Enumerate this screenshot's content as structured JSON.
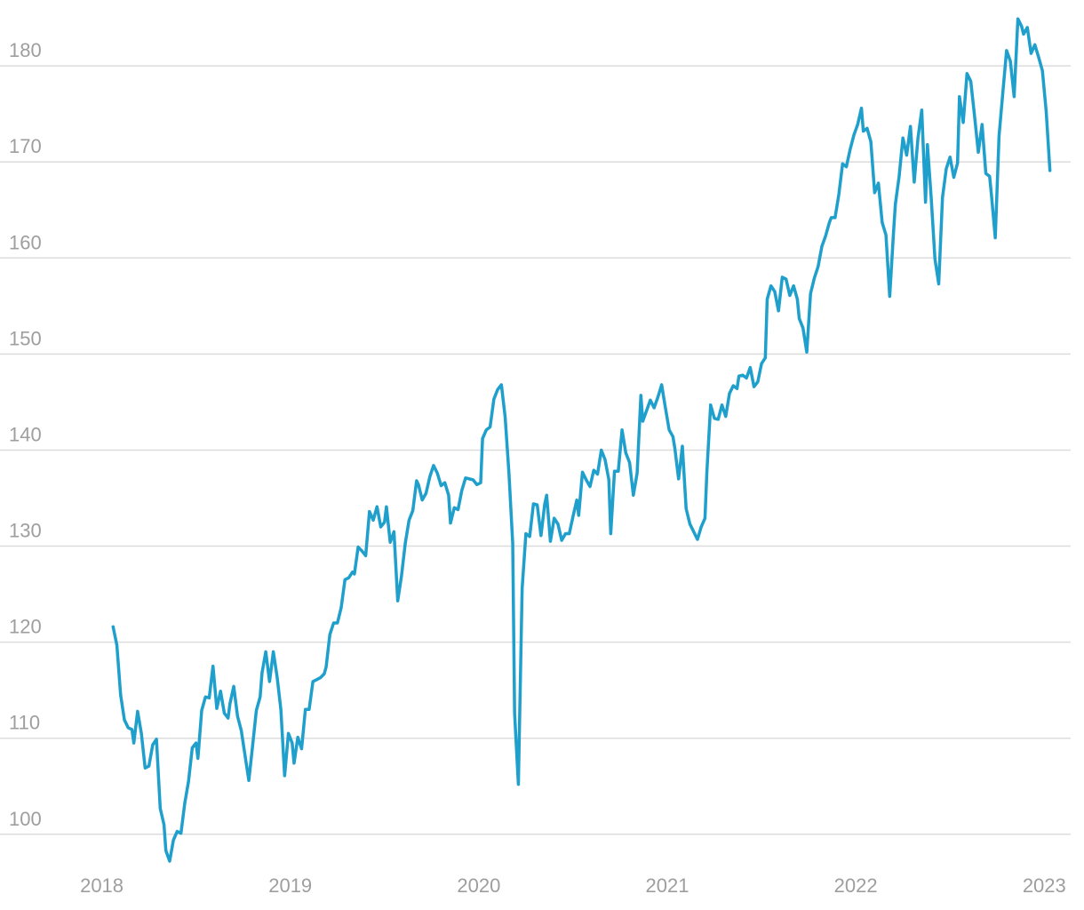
{
  "chart_data": {
    "type": "line",
    "color": "#1f9fcc",
    "grid": true,
    "xlim": [
      2017.46,
      2023.14
    ],
    "xticks": [
      2018,
      2019,
      2020,
      2021,
      2022,
      2023
    ],
    "ylim": [
      96,
      186
    ],
    "yticks": [
      100,
      110,
      120,
      130,
      140,
      150,
      160,
      170,
      180
    ],
    "x": [
      2018.06,
      2018.08,
      2018.1,
      2018.12,
      2018.14,
      2018.16,
      2018.17,
      2018.19,
      2018.21,
      2018.23,
      2018.25,
      2018.27,
      2018.29,
      2018.31,
      2018.33,
      2018.34,
      2018.36,
      2018.38,
      2018.4,
      2018.42,
      2018.44,
      2018.46,
      2018.48,
      2018.5,
      2018.51,
      2018.53,
      2018.55,
      2018.57,
      2018.59,
      2018.61,
      2018.63,
      2018.65,
      2018.67,
      2018.68,
      2018.7,
      2018.72,
      2018.74,
      2018.76,
      2018.78,
      2018.8,
      2018.82,
      2018.84,
      2018.85,
      2018.87,
      2018.89,
      2018.91,
      2018.93,
      2018.95,
      2018.97,
      2018.99,
      2019.01,
      2019.02,
      2019.04,
      2019.06,
      2019.08,
      2019.1,
      2019.12,
      2019.14,
      2019.16,
      2019.18,
      2019.19,
      2019.21,
      2019.23,
      2019.25,
      2019.27,
      2019.29,
      2019.31,
      2019.33,
      2019.34,
      2019.36,
      2019.38,
      2019.4,
      2019.42,
      2019.44,
      2019.46,
      2019.48,
      2019.5,
      2019.51,
      2019.53,
      2019.55,
      2019.57,
      2019.59,
      2019.61,
      2019.63,
      2019.65,
      2019.67,
      2019.68,
      2019.7,
      2019.72,
      2019.74,
      2019.76,
      2019.78,
      2019.8,
      2019.82,
      2019.84,
      2019.85,
      2019.87,
      2019.89,
      2019.91,
      2019.93,
      2019.95,
      2019.97,
      2019.99,
      2020.01,
      2020.02,
      2020.04,
      2020.06,
      2020.08,
      2020.1,
      2020.12,
      2020.14,
      2020.16,
      2020.18,
      2020.19,
      2020.21,
      2020.23,
      2020.25,
      2020.27,
      2020.29,
      2020.31,
      2020.33,
      2020.35,
      2020.36,
      2020.38,
      2020.4,
      2020.42,
      2020.44,
      2020.46,
      2020.48,
      2020.5,
      2020.52,
      2020.53,
      2020.55,
      2020.57,
      2020.59,
      2020.61,
      2020.63,
      2020.65,
      2020.67,
      2020.69,
      2020.7,
      2020.72,
      2020.74,
      2020.76,
      2020.78,
      2020.8,
      2020.82,
      2020.84,
      2020.86,
      2020.87,
      2020.89,
      2020.91,
      2020.93,
      2020.95,
      2020.97,
      2020.99,
      2021.01,
      2021.03,
      2021.04,
      2021.06,
      2021.08,
      2021.1,
      2021.12,
      2021.14,
      2021.16,
      2021.18,
      2021.2,
      2021.21,
      2021.23,
      2021.25,
      2021.27,
      2021.29,
      2021.31,
      2021.33,
      2021.35,
      2021.37,
      2021.38,
      2021.4,
      2021.42,
      2021.44,
      2021.46,
      2021.48,
      2021.5,
      2021.52,
      2021.53,
      2021.55,
      2021.57,
      2021.59,
      2021.61,
      2021.63,
      2021.65,
      2021.67,
      2021.69,
      2021.7,
      2021.72,
      2021.74,
      2021.76,
      2021.78,
      2021.8,
      2021.82,
      2021.84,
      2021.86,
      2021.87,
      2021.89,
      2021.91,
      2021.93,
      2021.95,
      2021.97,
      2021.99,
      2022.01,
      2022.03,
      2022.04,
      2022.06,
      2022.08,
      2022.1,
      2022.12,
      2022.14,
      2022.16,
      2022.18,
      2022.2,
      2022.21,
      2022.23,
      2022.25,
      2022.27,
      2022.29,
      2022.31,
      2022.33,
      2022.35,
      2022.37,
      2022.38,
      2022.4,
      2022.42,
      2022.44,
      2022.46,
      2022.48,
      2022.5,
      2022.52,
      2022.54,
      2022.55,
      2022.57,
      2022.59,
      2022.61,
      2022.63,
      2022.65,
      2022.67,
      2022.69,
      2022.71,
      2022.72,
      2022.74,
      2022.76,
      2022.78,
      2022.8,
      2022.82,
      2022.84,
      2022.86,
      2022.88,
      2022.89,
      2022.91,
      2022.93,
      2022.95,
      2022.97,
      2022.99,
      2023.01,
      2023.03
    ],
    "values": [
      121.6,
      119.7,
      114.5,
      111.9,
      111.1,
      110.9,
      109.5,
      112.8,
      110.5,
      106.9,
      107.1,
      109.3,
      109.9,
      102.7,
      101.0,
      98.3,
      97.2,
      99.4,
      100.3,
      100.1,
      103.2,
      105.5,
      109.0,
      109.5,
      107.9,
      112.9,
      114.3,
      114.2,
      117.5,
      113.1,
      114.9,
      112.6,
      112.1,
      113.6,
      115.4,
      112.3,
      110.8,
      108.2,
      105.6,
      109.2,
      112.9,
      114.3,
      116.8,
      119.0,
      115.9,
      119.0,
      116.4,
      113.0,
      106.1,
      110.5,
      109.5,
      107.4,
      110.1,
      108.9,
      113.0,
      113.0,
      115.9,
      116.1,
      116.3,
      116.7,
      117.4,
      120.8,
      122.0,
      122.0,
      123.6,
      126.5,
      126.7,
      127.3,
      127.1,
      129.9,
      129.5,
      129.0,
      133.6,
      132.7,
      134.1,
      132.0,
      132.5,
      134.1,
      130.4,
      131.5,
      124.3,
      126.9,
      130.3,
      132.7,
      133.7,
      136.8,
      136.4,
      134.8,
      135.5,
      137.2,
      138.4,
      137.6,
      136.3,
      136.6,
      135.3,
      132.4,
      134.0,
      133.8,
      135.8,
      137.1,
      137.0,
      136.9,
      136.4,
      136.6,
      141.2,
      142.1,
      142.4,
      145.3,
      146.3,
      146.8,
      143.4,
      137.6,
      130.3,
      112.6,
      105.2,
      125.6,
      131.3,
      131.0,
      134.4,
      134.3,
      131.1,
      134.4,
      135.3,
      130.5,
      132.9,
      132.3,
      130.6,
      131.3,
      131.3,
      133.1,
      134.8,
      133.2,
      137.7,
      136.9,
      136.2,
      137.9,
      137.5,
      140.0,
      139.0,
      136.9,
      131.3,
      137.8,
      137.8,
      142.1,
      139.7,
      138.7,
      135.3,
      137.6,
      145.7,
      143.0,
      144.1,
      145.2,
      144.4,
      145.5,
      146.8,
      144.4,
      142.1,
      141.4,
      140.2,
      137.0,
      140.4,
      133.9,
      132.3,
      131.5,
      130.7,
      132.0,
      132.9,
      137.7,
      144.7,
      143.3,
      143.2,
      144.7,
      143.5,
      145.9,
      146.7,
      146.4,
      147.7,
      147.8,
      147.5,
      148.6,
      146.6,
      147.1,
      149.0,
      149.6,
      155.7,
      157.1,
      156.5,
      154.5,
      158.0,
      157.8,
      156.1,
      157.1,
      155.7,
      153.7,
      152.7,
      150.2,
      156.3,
      157.9,
      159.1,
      161.2,
      162.3,
      163.7,
      164.2,
      164.2,
      166.6,
      169.8,
      169.5,
      171.3,
      172.8,
      173.9,
      175.6,
      173.2,
      173.5,
      172.1,
      166.8,
      167.8,
      163.7,
      162.4,
      156.0,
      162.6,
      165.6,
      168.5,
      172.5,
      170.7,
      173.7,
      167.9,
      172.5,
      175.4,
      165.8,
      171.8,
      166.3,
      159.9,
      157.3,
      166.3,
      169.3,
      170.5,
      168.4,
      169.9,
      176.8,
      174.1,
      179.2,
      178.4,
      174.8,
      171.0,
      173.9,
      168.8,
      168.5,
      166.5,
      162.1,
      172.7,
      177.2,
      181.6,
      180.5,
      176.8,
      184.9,
      184.1,
      183.3,
      184.0,
      181.3,
      182.2,
      180.9,
      179.5,
      175.3,
      169.1
    ]
  }
}
